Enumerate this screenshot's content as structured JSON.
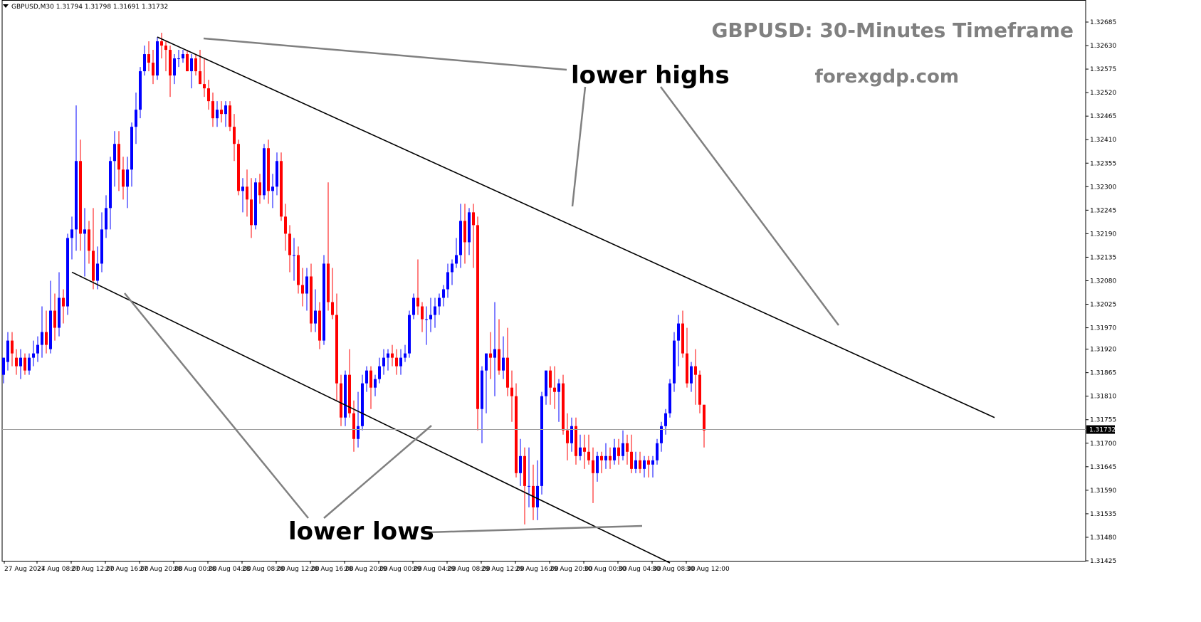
{
  "header": {
    "symbol_info": "GBPUSD,M30  1.31794 1.31798 1.31691 1.31732"
  },
  "overlay": {
    "title": "GBPUSD: 30-Minutes Timeframe",
    "site": "forexgdp.com"
  },
  "annotations": {
    "upper": "lower highs",
    "lower": "lower lows"
  },
  "colors": {
    "bull": "#0000ff",
    "bear": "#ff0000",
    "title_gray": "#808080",
    "pointer_gray": "#808080",
    "trend_line": "#000000"
  },
  "chart_data": {
    "type": "candlestick",
    "symbol": "GBPUSD",
    "timeframe": "M30",
    "ohlc_header": {
      "open": 1.31794,
      "high": 1.31798,
      "low": 1.31691,
      "close": 1.31732
    },
    "current_price": "1.31732",
    "ylim": [
      1.31425,
      1.32685
    ],
    "y_ticks": [
      "1.32685",
      "1.32630",
      "1.32575",
      "1.32520",
      "1.32465",
      "1.32410",
      "1.32355",
      "1.32300",
      "1.32245",
      "1.32190",
      "1.32135",
      "1.32080",
      "1.32025",
      "1.31970",
      "1.31920",
      "1.31865",
      "1.31810",
      "1.31755",
      "1.31700",
      "1.31645",
      "1.31590",
      "1.31535",
      "1.31480",
      "1.31425"
    ],
    "x_ticks": [
      "27 Aug 2024",
      "27 Aug 08:00",
      "27 Aug 12:00",
      "27 Aug 16:00",
      "27 Aug 20:00",
      "28 Aug 00:00",
      "28 Aug 04:00",
      "28 Aug 08:00",
      "28 Aug 12:00",
      "28 Aug 16:00",
      "28 Aug 20:00",
      "29 Aug 00:00",
      "29 Aug 04:00",
      "29 Aug 08:00",
      "29 Aug 12:00",
      "29 Aug 16:00",
      "29 Aug 20:00",
      "30 Aug 00:00",
      "30 Aug 04:00",
      "30 Aug 08:00",
      "30 Aug 12:00"
    ],
    "candles_note": "[open, high, low, close] for each 30-minute bar, oldest first",
    "candles": [
      [
        1.3186,
        1.319,
        1.3184,
        1.319
      ],
      [
        1.3189,
        1.3196,
        1.3187,
        1.3194
      ],
      [
        1.3194,
        1.3196,
        1.3188,
        1.3191
      ],
      [
        1.319,
        1.3192,
        1.3186,
        1.3188
      ],
      [
        1.3188,
        1.3192,
        1.3185,
        1.319
      ],
      [
        1.319,
        1.3191,
        1.3186,
        1.3187
      ],
      [
        1.3187,
        1.3191,
        1.3186,
        1.319
      ],
      [
        1.319,
        1.3194,
        1.3188,
        1.3191
      ],
      [
        1.3191,
        1.3195,
        1.3189,
        1.3193
      ],
      [
        1.3193,
        1.3202,
        1.319,
        1.3196
      ],
      [
        1.3196,
        1.3201,
        1.3191,
        1.3193
      ],
      [
        1.3192,
        1.3208,
        1.3191,
        1.3201
      ],
      [
        1.3201,
        1.3205,
        1.3194,
        1.3197
      ],
      [
        1.3197,
        1.321,
        1.3195,
        1.3204
      ],
      [
        1.3204,
        1.3206,
        1.3198,
        1.3202
      ],
      [
        1.3202,
        1.3219,
        1.32,
        1.3218
      ],
      [
        1.3218,
        1.3223,
        1.3213,
        1.322
      ],
      [
        1.322,
        1.3249,
        1.3215,
        1.3236
      ],
      [
        1.3236,
        1.3241,
        1.3215,
        1.3219
      ],
      [
        1.3219,
        1.3225,
        1.3209,
        1.322
      ],
      [
        1.322,
        1.3222,
        1.3212,
        1.3215
      ],
      [
        1.3215,
        1.3225,
        1.3206,
        1.3208
      ],
      [
        1.3208,
        1.3216,
        1.3206,
        1.3212
      ],
      [
        1.3212,
        1.3224,
        1.321,
        1.322
      ],
      [
        1.322,
        1.3228,
        1.3218,
        1.3225
      ],
      [
        1.3225,
        1.3237,
        1.322,
        1.3236
      ],
      [
        1.3236,
        1.3243,
        1.323,
        1.324
      ],
      [
        1.324,
        1.3243,
        1.3229,
        1.3234
      ],
      [
        1.3234,
        1.3237,
        1.3227,
        1.323
      ],
      [
        1.323,
        1.3237,
        1.3225,
        1.3234
      ],
      [
        1.3234,
        1.3245,
        1.323,
        1.3244
      ],
      [
        1.3244,
        1.3252,
        1.324,
        1.3248
      ],
      [
        1.3248,
        1.3258,
        1.3246,
        1.3257
      ],
      [
        1.3257,
        1.3263,
        1.3256,
        1.3261
      ],
      [
        1.3261,
        1.3264,
        1.3257,
        1.3259
      ],
      [
        1.3259,
        1.3262,
        1.3254,
        1.3256
      ],
      [
        1.3256,
        1.3265,
        1.3255,
        1.3264
      ],
      [
        1.3264,
        1.3266,
        1.326,
        1.3263
      ],
      [
        1.3263,
        1.3264,
        1.3257,
        1.3262
      ],
      [
        1.3262,
        1.3263,
        1.3251,
        1.3256
      ],
      [
        1.3256,
        1.3261,
        1.3254,
        1.326
      ],
      [
        1.326,
        1.3262,
        1.3258,
        1.326
      ],
      [
        1.326,
        1.3262,
        1.3259,
        1.3261
      ],
      [
        1.3261,
        1.3262,
        1.3257,
        1.3257
      ],
      [
        1.3257,
        1.3261,
        1.3253,
        1.326
      ],
      [
        1.326,
        1.3261,
        1.3256,
        1.3257
      ],
      [
        1.3257,
        1.3262,
        1.3254,
        1.3254
      ],
      [
        1.3254,
        1.326,
        1.3251,
        1.3253
      ],
      [
        1.3253,
        1.3255,
        1.3248,
        1.325
      ],
      [
        1.325,
        1.3252,
        1.3244,
        1.3246
      ],
      [
        1.3246,
        1.325,
        1.3244,
        1.3248
      ],
      [
        1.3248,
        1.325,
        1.3245,
        1.3247
      ],
      [
        1.3247,
        1.325,
        1.3244,
        1.3249
      ],
      [
        1.3249,
        1.325,
        1.3243,
        1.3244
      ],
      [
        1.3244,
        1.3247,
        1.3236,
        1.324
      ],
      [
        1.324,
        1.3241,
        1.3228,
        1.3229
      ],
      [
        1.3229,
        1.3232,
        1.3224,
        1.323
      ],
      [
        1.323,
        1.3234,
        1.3223,
        1.3227
      ],
      [
        1.3227,
        1.3232,
        1.3218,
        1.3221
      ],
      [
        1.3221,
        1.3232,
        1.322,
        1.3231
      ],
      [
        1.3231,
        1.3233,
        1.3226,
        1.3228
      ],
      [
        1.3228,
        1.324,
        1.3227,
        1.3239
      ],
      [
        1.3239,
        1.3241,
        1.3226,
        1.3229
      ],
      [
        1.3229,
        1.3233,
        1.3225,
        1.323
      ],
      [
        1.323,
        1.3238,
        1.3228,
        1.3236
      ],
      [
        1.3236,
        1.3238,
        1.3222,
        1.3223
      ],
      [
        1.3223,
        1.3226,
        1.3215,
        1.3219
      ],
      [
        1.3219,
        1.3221,
        1.321,
        1.3214
      ],
      [
        1.3214,
        1.3218,
        1.3208,
        1.3214
      ],
      [
        1.3214,
        1.3216,
        1.3205,
        1.3207
      ],
      [
        1.3207,
        1.3211,
        1.3202,
        1.3205
      ],
      [
        1.3205,
        1.3211,
        1.3201,
        1.3209
      ],
      [
        1.3209,
        1.3212,
        1.3196,
        1.3198
      ],
      [
        1.3198,
        1.3206,
        1.3196,
        1.3201
      ],
      [
        1.3201,
        1.3203,
        1.3192,
        1.3194
      ],
      [
        1.3194,
        1.3214,
        1.3193,
        1.3212
      ],
      [
        1.3212,
        1.3231,
        1.3201,
        1.3203
      ],
      [
        1.3203,
        1.3211,
        1.3199,
        1.32
      ],
      [
        1.32,
        1.3205,
        1.318,
        1.3184
      ],
      [
        1.3184,
        1.3186,
        1.3174,
        1.3176
      ],
      [
        1.3176,
        1.3187,
        1.3174,
        1.3186
      ],
      [
        1.3186,
        1.3192,
        1.3176,
        1.3177
      ],
      [
        1.3177,
        1.318,
        1.3168,
        1.3171
      ],
      [
        1.3171,
        1.3182,
        1.3169,
        1.3174
      ],
      [
        1.3174,
        1.3186,
        1.3173,
        1.3184
      ],
      [
        1.3184,
        1.3188,
        1.3182,
        1.3187
      ],
      [
        1.3187,
        1.3188,
        1.3178,
        1.3183
      ],
      [
        1.3183,
        1.3186,
        1.3181,
        1.3185
      ],
      [
        1.3185,
        1.319,
        1.3184,
        1.3188
      ],
      [
        1.3188,
        1.3192,
        1.3186,
        1.319
      ],
      [
        1.319,
        1.3192,
        1.3187,
        1.3191
      ],
      [
        1.3191,
        1.3193,
        1.3188,
        1.319
      ],
      [
        1.319,
        1.3192,
        1.3186,
        1.3188
      ],
      [
        1.3188,
        1.3192,
        1.3186,
        1.319
      ],
      [
        1.319,
        1.3193,
        1.3189,
        1.3191
      ],
      [
        1.3191,
        1.3201,
        1.319,
        1.32
      ],
      [
        1.32,
        1.3205,
        1.3199,
        1.3204
      ],
      [
        1.3204,
        1.3213,
        1.32,
        1.3202
      ],
      [
        1.3202,
        1.3203,
        1.3196,
        1.3199
      ],
      [
        1.3199,
        1.3202,
        1.3193,
        1.3199
      ],
      [
        1.3199,
        1.3204,
        1.3196,
        1.32
      ],
      [
        1.32,
        1.3204,
        1.3197,
        1.3202
      ],
      [
        1.3202,
        1.3205,
        1.32,
        1.3204
      ],
      [
        1.3204,
        1.3207,
        1.3202,
        1.3206
      ],
      [
        1.3206,
        1.3212,
        1.3204,
        1.321
      ],
      [
        1.321,
        1.3213,
        1.3207,
        1.3212
      ],
      [
        1.3212,
        1.3218,
        1.3211,
        1.3214
      ],
      [
        1.3214,
        1.3226,
        1.3211,
        1.3222
      ],
      [
        1.3222,
        1.3226,
        1.3212,
        1.3217
      ],
      [
        1.3217,
        1.3225,
        1.3214,
        1.3224
      ],
      [
        1.3224,
        1.3226,
        1.3211,
        1.3221
      ],
      [
        1.3221,
        1.3223,
        1.3173,
        1.3178
      ],
      [
        1.3178,
        1.3188,
        1.317,
        1.3187
      ],
      [
        1.3187,
        1.3191,
        1.3177,
        1.3191
      ],
      [
        1.3191,
        1.3196,
        1.3185,
        1.319
      ],
      [
        1.319,
        1.3203,
        1.3181,
        1.3192
      ],
      [
        1.3192,
        1.3199,
        1.3186,
        1.3187
      ],
      [
        1.3187,
        1.3195,
        1.3185,
        1.319
      ],
      [
        1.319,
        1.3197,
        1.3181,
        1.3183
      ],
      [
        1.3183,
        1.3187,
        1.3175,
        1.3181
      ],
      [
        1.3181,
        1.3184,
        1.3162,
        1.3163
      ],
      [
        1.3163,
        1.3171,
        1.316,
        1.3167
      ],
      [
        1.3167,
        1.3169,
        1.3151,
        1.316
      ],
      [
        1.316,
        1.3169,
        1.3155,
        1.316
      ],
      [
        1.316,
        1.3165,
        1.3152,
        1.3155
      ],
      [
        1.3155,
        1.3166,
        1.3152,
        1.316
      ],
      [
        1.316,
        1.3182,
        1.3158,
        1.3181
      ],
      [
        1.3181,
        1.3187,
        1.3179,
        1.3187
      ],
      [
        1.3187,
        1.3188,
        1.3179,
        1.3183
      ],
      [
        1.3183,
        1.3188,
        1.3178,
        1.3182
      ],
      [
        1.3182,
        1.3185,
        1.3175,
        1.3184
      ],
      [
        1.3184,
        1.3186,
        1.3172,
        1.3173
      ],
      [
        1.3173,
        1.3177,
        1.3166,
        1.317
      ],
      [
        1.317,
        1.3176,
        1.3168,
        1.3174
      ],
      [
        1.3174,
        1.3176,
        1.3165,
        1.3167
      ],
      [
        1.3167,
        1.3172,
        1.3166,
        1.3169
      ],
      [
        1.3169,
        1.3172,
        1.3164,
        1.3168
      ],
      [
        1.3168,
        1.3172,
        1.3165,
        1.3166
      ],
      [
        1.3166,
        1.3169,
        1.3156,
        1.3163
      ],
      [
        1.3163,
        1.3168,
        1.3161,
        1.3167
      ],
      [
        1.3167,
        1.3168,
        1.3163,
        1.3166
      ],
      [
        1.3166,
        1.317,
        1.3164,
        1.3167
      ],
      [
        1.3167,
        1.3169,
        1.3164,
        1.3166
      ],
      [
        1.3166,
        1.3171,
        1.3165,
        1.3169
      ],
      [
        1.3169,
        1.3171,
        1.3165,
        1.3167
      ],
      [
        1.3167,
        1.3173,
        1.3166,
        1.317
      ],
      [
        1.317,
        1.3172,
        1.3165,
        1.3168
      ],
      [
        1.3168,
        1.3172,
        1.3163,
        1.3164
      ],
      [
        1.3164,
        1.3168,
        1.3163,
        1.3166
      ],
      [
        1.3166,
        1.3168,
        1.3163,
        1.3164
      ],
      [
        1.3164,
        1.3167,
        1.3162,
        1.3166
      ],
      [
        1.3166,
        1.3167,
        1.3162,
        1.3165
      ],
      [
        1.3165,
        1.3167,
        1.3162,
        1.3166
      ],
      [
        1.3166,
        1.3171,
        1.3165,
        1.317
      ],
      [
        1.317,
        1.3175,
        1.3168,
        1.3174
      ],
      [
        1.3174,
        1.3178,
        1.3172,
        1.3177
      ],
      [
        1.3177,
        1.3185,
        1.3176,
        1.3184
      ],
      [
        1.3184,
        1.3196,
        1.3182,
        1.3194
      ],
      [
        1.3194,
        1.32,
        1.3188,
        1.3198
      ],
      [
        1.3198,
        1.3201,
        1.319,
        1.3191
      ],
      [
        1.3191,
        1.3197,
        1.3183,
        1.3184
      ],
      [
        1.3184,
        1.3189,
        1.3182,
        1.3188
      ],
      [
        1.3188,
        1.3192,
        1.3179,
        1.3186
      ],
      [
        1.3186,
        1.3187,
        1.3177,
        1.3179
      ],
      [
        1.3179,
        1.3179,
        1.3169,
        1.3173
      ]
    ],
    "trendlines": [
      {
        "from": {
          "bar": 36,
          "price": 1.3265
        },
        "to": {
          "bar": 232,
          "price": 1.3176
        }
      },
      {
        "from": {
          "bar": 16,
          "price": 1.321
        },
        "to": {
          "bar": 156,
          "price": 1.3142
        }
      }
    ]
  }
}
